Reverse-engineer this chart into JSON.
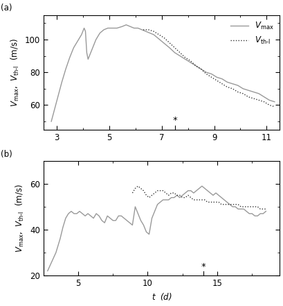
{
  "panel_a": {
    "label": "(a)",
    "xlim": [
      2.5,
      11.5
    ],
    "ylim": [
      45,
      115
    ],
    "xticks": [
      3,
      5,
      7,
      9,
      11
    ],
    "yticks": [
      60,
      80,
      100
    ],
    "ylabel": "$V_{\\mathrm{max}}$,  $V_{\\mathrm{th\\text{-}l}}$  (m/s)",
    "asterisk_x": 7.5,
    "vmax_x": [
      2.8,
      3.05,
      3.2,
      3.35,
      3.5,
      3.65,
      3.8,
      3.95,
      4.05,
      4.1,
      4.15,
      4.2,
      4.25,
      4.35,
      4.5,
      4.65,
      4.8,
      4.95,
      5.1,
      5.3,
      5.5,
      5.65,
      5.8,
      5.95,
      6.1,
      6.25,
      6.4,
      6.55,
      6.7,
      6.85,
      7.0,
      7.15,
      7.3,
      7.5,
      7.7,
      7.9,
      8.1,
      8.3,
      8.5,
      8.7,
      8.9,
      9.1,
      9.3,
      9.5,
      9.7,
      9.9,
      10.1,
      10.3,
      10.5,
      10.7,
      10.9,
      11.1,
      11.3
    ],
    "vmax_y": [
      50,
      65,
      74,
      82,
      89,
      95,
      99,
      103,
      107,
      105,
      92,
      88,
      90,
      94,
      100,
      104,
      106,
      107,
      107,
      107,
      108,
      109,
      108,
      107,
      107,
      106,
      105,
      104,
      103,
      101,
      99,
      97,
      95,
      92,
      90,
      88,
      86,
      84,
      82,
      80,
      79,
      77,
      76,
      74,
      73,
      72,
      70,
      69,
      68,
      67,
      65,
      63,
      62
    ],
    "vth_x": [
      6.3,
      6.5,
      6.7,
      6.9,
      7.1,
      7.3,
      7.5,
      7.7,
      7.9,
      8.1,
      8.3,
      8.5,
      8.7,
      8.9,
      9.1,
      9.3,
      9.5,
      9.7,
      9.9,
      10.1,
      10.3,
      10.5,
      10.7,
      10.9,
      11.1,
      11.3
    ],
    "vth_y": [
      106,
      106,
      105,
      103,
      101,
      98,
      95,
      92,
      89,
      87,
      84,
      82,
      79,
      77,
      75,
      73,
      71,
      70,
      68,
      67,
      65,
      64,
      63,
      62,
      60,
      59
    ],
    "legend_vmax": "$V_{\\mathrm{max}}$",
    "legend_vth": "$V_{\\mathrm{th\\text{-}l}}$"
  },
  "panel_b": {
    "label": "(b)",
    "xlim": [
      2.5,
      19.5
    ],
    "ylim": [
      20,
      70
    ],
    "xticks": [
      5,
      10,
      15
    ],
    "yticks": [
      20,
      40,
      60
    ],
    "ylabel": "$V_{\\mathrm{max}}$,  $V_{\\mathrm{th\\text{-}l}}$  (m/s)",
    "xlabel": "$t$  (d)",
    "asterisk_x": 14.0,
    "vmax_x": [
      2.8,
      3.1,
      3.4,
      3.7,
      3.9,
      4.1,
      4.3,
      4.5,
      4.7,
      4.9,
      5.1,
      5.3,
      5.5,
      5.7,
      5.9,
      6.1,
      6.3,
      6.5,
      6.7,
      6.9,
      7.1,
      7.3,
      7.5,
      7.7,
      7.9,
      8.1,
      8.3,
      8.5,
      8.7,
      8.9,
      9.1,
      9.3,
      9.5,
      9.7,
      9.9,
      10.1,
      10.3,
      10.5,
      10.7,
      10.9,
      11.1,
      11.3,
      11.5,
      11.7,
      11.9,
      12.1,
      12.3,
      12.5,
      12.7,
      12.9,
      13.1,
      13.3,
      13.5,
      13.7,
      13.9,
      14.1,
      14.3,
      14.5,
      14.7,
      14.9,
      15.1,
      15.3,
      15.5,
      15.7,
      15.9,
      16.1,
      16.3,
      16.5,
      16.7,
      16.9,
      17.1,
      17.3,
      17.5,
      17.7,
      17.9,
      18.1,
      18.3,
      18.5
    ],
    "vmax_y": [
      22,
      26,
      30,
      36,
      41,
      45,
      47,
      48,
      47,
      47,
      48,
      47,
      46,
      47,
      46,
      45,
      47,
      46,
      44,
      43,
      46,
      45,
      44,
      44,
      46,
      46,
      45,
      44,
      43,
      42,
      50,
      47,
      44,
      42,
      39,
      38,
      45,
      48,
      51,
      52,
      53,
      53,
      53,
      54,
      54,
      55,
      54,
      55,
      56,
      57,
      57,
      56,
      57,
      58,
      59,
      58,
      57,
      56,
      55,
      56,
      55,
      54,
      53,
      52,
      51,
      50,
      50,
      49,
      49,
      49,
      48,
      47,
      47,
      46,
      46,
      47,
      47,
      48
    ],
    "vth_x": [
      8.9,
      9.1,
      9.3,
      9.5,
      9.7,
      9.9,
      10.1,
      10.3,
      10.5,
      10.7,
      10.9,
      11.1,
      11.3,
      11.5,
      11.7,
      11.9,
      12.1,
      12.3,
      12.5,
      12.7,
      12.9,
      13.1,
      13.3,
      13.5,
      13.7,
      13.9,
      14.1,
      14.3,
      14.5,
      14.7,
      14.9,
      15.1,
      15.3,
      15.5,
      15.7,
      15.9,
      16.1,
      16.3,
      16.5,
      16.7,
      16.9,
      17.1,
      17.3,
      17.5,
      17.7,
      17.9,
      18.1,
      18.3,
      18.5
    ],
    "vth_y": [
      56,
      58,
      59,
      58,
      57,
      55,
      54,
      55,
      56,
      57,
      57,
      57,
      56,
      55,
      56,
      56,
      55,
      55,
      54,
      54,
      55,
      54,
      53,
      53,
      53,
      53,
      53,
      52,
      52,
      52,
      52,
      52,
      51,
      51,
      51,
      51,
      51,
      51,
      51,
      50,
      50,
      50,
      50,
      50,
      50,
      50,
      49,
      49,
      49
    ]
  },
  "line_color_vmax": "#999999",
  "line_color_vth": "#333333",
  "line_width": 1.0,
  "dot_linewidth": 1.0,
  "font_size": 8.5
}
